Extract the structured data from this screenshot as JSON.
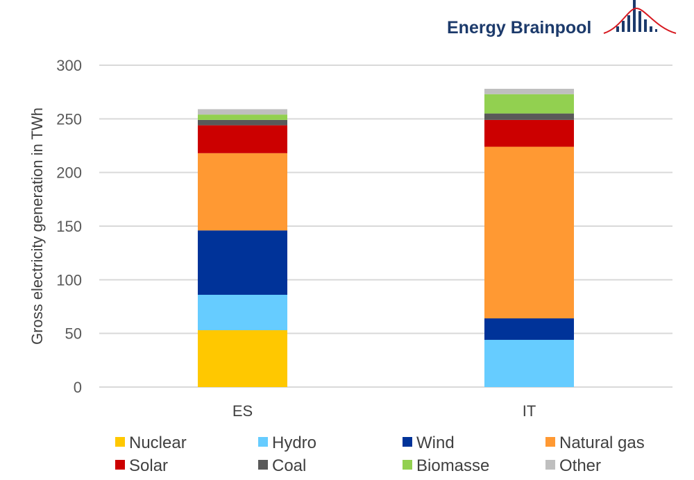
{
  "logo": {
    "text": "Energy Brainpool"
  },
  "chart_data": {
    "type": "bar",
    "stacked": true,
    "title": "",
    "xlabel": "",
    "ylabel": "Gross electricity generation in TWh",
    "ylim": [
      0,
      300
    ],
    "yticks": [
      0,
      50,
      100,
      150,
      200,
      250,
      300
    ],
    "ytick_labels": [
      "0",
      "50",
      "100",
      "150",
      "200",
      "250",
      "300"
    ],
    "grid": true,
    "legend_position": "bottom",
    "categories": [
      "ES",
      "IT"
    ],
    "series": [
      {
        "name": "Nuclear",
        "color": "#ffc800",
        "values": [
          53,
          0
        ]
      },
      {
        "name": "Hydro",
        "color": "#66ccff",
        "values": [
          33,
          44
        ]
      },
      {
        "name": "Wind",
        "color": "#003399",
        "values": [
          60,
          20
        ]
      },
      {
        "name": "Natural gas",
        "color": "#ff9933",
        "values": [
          72,
          160
        ]
      },
      {
        "name": "Solar",
        "color": "#cc0000",
        "values": [
          26,
          25
        ]
      },
      {
        "name": "Coal",
        "color": "#595959",
        "values": [
          5,
          6
        ]
      },
      {
        "name": "Biomasse",
        "color": "#92d050",
        "values": [
          5,
          18
        ]
      },
      {
        "name": "Other",
        "color": "#bfbfbf",
        "values": [
          5,
          5
        ]
      }
    ]
  }
}
